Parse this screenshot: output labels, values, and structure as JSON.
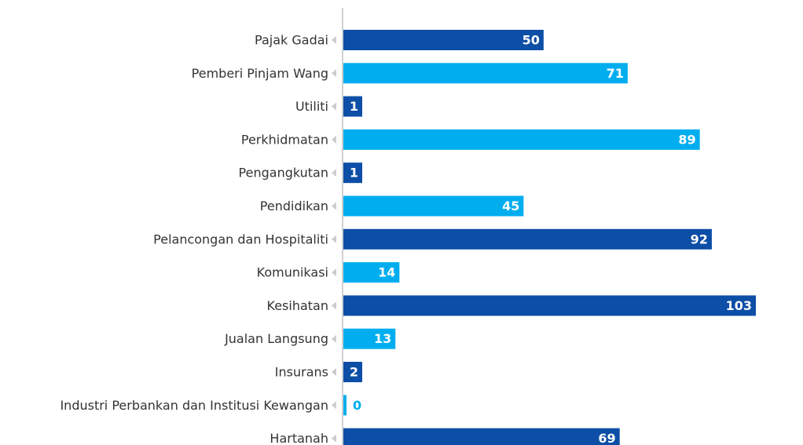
{
  "chart_data": {
    "type": "bar",
    "orientation": "horizontal",
    "categories": [
      "Pajak Gadai",
      "Pemberi Pinjam Wang",
      "Utiliti",
      "Perkhidmatan",
      "Pengangkutan",
      "Pendidikan",
      "Pelancongan dan Hospitaliti",
      "Komunikasi",
      "Kesihatan",
      "Jualan Langsung",
      "Insurans",
      "Industri Perbankan dan Institusi Kewangan",
      "Hartanah"
    ],
    "values": [
      50,
      71,
      1,
      89,
      1,
      45,
      92,
      14,
      103,
      13,
      2,
      0,
      69
    ],
    "colors": [
      "#0d4ea6",
      "#00aeef",
      "#0d4ea6",
      "#00aeef",
      "#0d4ea6",
      "#00aeef",
      "#0d4ea6",
      "#00aeef",
      "#0d4ea6",
      "#00aeef",
      "#0d4ea6",
      "#00aeef",
      "#0d4ea6"
    ],
    "xlim": [
      0,
      103
    ]
  }
}
